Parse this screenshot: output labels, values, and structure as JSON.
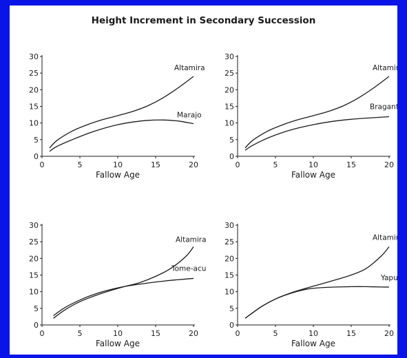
{
  "title": "Height Increment in Secondary Succession",
  "colors": {
    "frame": "#0a14e6",
    "paper": "#ffffff",
    "ink": "#1a1a1a"
  },
  "chart_data": [
    {
      "type": "line",
      "xlabel": "Fallow Age",
      "xlim": [
        0,
        20
      ],
      "ylim": [
        0,
        30
      ],
      "xticks": [
        0,
        5,
        10,
        15,
        20
      ],
      "yticks": [
        0,
        5,
        10,
        15,
        20,
        25,
        30
      ],
      "series": [
        {
          "name": "Altamira",
          "x": [
            1,
            2,
            4,
            6,
            8,
            10,
            12,
            14,
            16,
            18,
            20
          ],
          "y": [
            2.5,
            4.8,
            7.6,
            9.5,
            11,
            12.2,
            13.5,
            15.2,
            17.6,
            20.6,
            24
          ]
        },
        {
          "name": "Marajo",
          "x": [
            1,
            2,
            4,
            6,
            8,
            10,
            12,
            14,
            16,
            18,
            20
          ],
          "y": [
            1.5,
            3,
            5,
            6.8,
            8.3,
            9.5,
            10.3,
            10.8,
            10.9,
            10.6,
            9.8
          ]
        }
      ]
    },
    {
      "type": "line",
      "xlabel": "Fallow Age",
      "xlim": [
        0,
        20
      ],
      "ylim": [
        0,
        30
      ],
      "xticks": [
        0,
        5,
        10,
        15,
        20
      ],
      "yticks": [
        0,
        5,
        10,
        15,
        20,
        25,
        30
      ],
      "series": [
        {
          "name": "Altamira",
          "x": [
            1,
            2,
            4,
            6,
            8,
            10,
            12,
            14,
            16,
            18,
            20
          ],
          "y": [
            2.5,
            4.8,
            7.6,
            9.5,
            11,
            12.2,
            13.5,
            15.2,
            17.6,
            20.6,
            24
          ]
        },
        {
          "name": "Bragantina",
          "x": [
            1,
            2,
            4,
            6,
            8,
            10,
            12,
            14,
            16,
            18,
            20
          ],
          "y": [
            1.8,
            3.3,
            5.5,
            7.2,
            8.5,
            9.5,
            10.3,
            10.9,
            11.3,
            11.6,
            11.9
          ]
        }
      ]
    },
    {
      "type": "line",
      "xlabel": "Fallow Age",
      "xlim": [
        0,
        20
      ],
      "ylim": [
        0,
        30
      ],
      "xticks": [
        0,
        5,
        10,
        15,
        20
      ],
      "yticks": [
        0,
        5,
        10,
        15,
        20,
        25,
        30
      ],
      "series": [
        {
          "name": "Altamira",
          "x": [
            1.5,
            3,
            5,
            7,
            9,
            11,
            13,
            15,
            17,
            19,
            20
          ],
          "y": [
            2,
            4.5,
            7,
            8.8,
            10.3,
            11.6,
            12.8,
            14.6,
            17,
            20.6,
            23.5
          ]
        },
        {
          "name": "Tome-acu",
          "x": [
            1.5,
            3,
            5,
            7,
            9,
            11,
            13,
            15,
            17,
            19,
            20
          ],
          "y": [
            2.8,
            5.2,
            7.5,
            9.3,
            10.6,
            11.6,
            12.3,
            12.9,
            13.4,
            13.8,
            14
          ]
        }
      ]
    },
    {
      "type": "line",
      "xlabel": "Fallow Age",
      "xlim": [
        0,
        20
      ],
      "ylim": [
        0,
        30
      ],
      "xticks": [
        0,
        5,
        10,
        15,
        20
      ],
      "yticks": [
        0,
        5,
        10,
        15,
        20,
        25,
        30
      ],
      "series": [
        {
          "name": "Altamira",
          "x": [
            1,
            3,
            5,
            7,
            9,
            11,
            13,
            15,
            17,
            19,
            20
          ],
          "y": [
            2,
            5.3,
            7.8,
            9.6,
            11,
            12.3,
            13.6,
            15,
            17,
            20.8,
            23.5
          ]
        },
        {
          "name": "Yapu",
          "x": [
            1,
            3,
            5,
            7,
            9,
            11,
            13,
            15,
            17,
            19,
            20
          ],
          "y": [
            2,
            5.3,
            7.8,
            9.5,
            10.7,
            11.2,
            11.4,
            11.5,
            11.5,
            11.4,
            11.4
          ]
        }
      ]
    }
  ]
}
